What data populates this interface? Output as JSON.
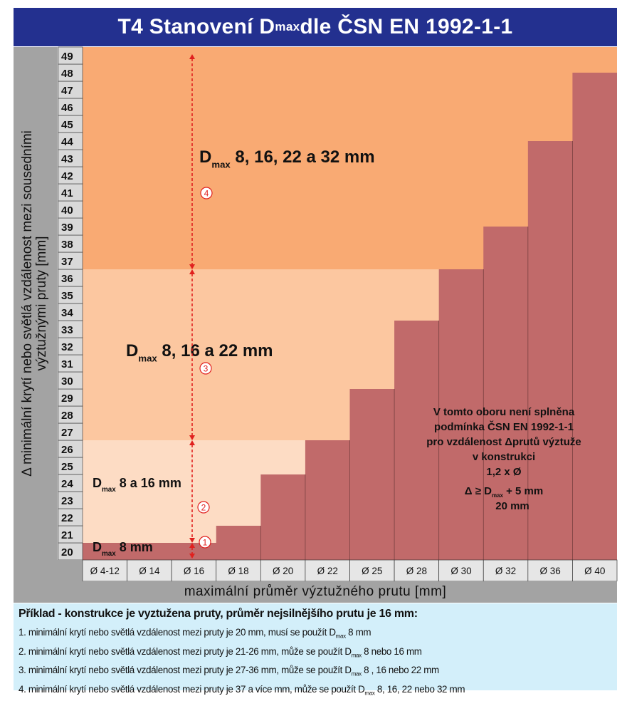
{
  "title": {
    "prefix": "T4  Stanovení D",
    "sub": "max",
    "suffix": " dle ČSN EN 1992-1-1"
  },
  "y_axis": {
    "label_line1": "Δ minimální krytí nebo světlá vzdálenost mezi sousedními",
    "label_line2": "výztužnými pruty  [mm]",
    "ticks": [
      20,
      21,
      22,
      23,
      24,
      25,
      26,
      27,
      28,
      29,
      30,
      31,
      32,
      33,
      34,
      35,
      36,
      37,
      38,
      39,
      40,
      41,
      42,
      43,
      44,
      45,
      46,
      47,
      48,
      49
    ]
  },
  "x_axis": {
    "label": "maximální průměr výztužného prutu [mm]",
    "categories": [
      "Ø 4-12",
      "Ø 14",
      "Ø 16",
      "Ø 18",
      "Ø 20",
      "Ø 22",
      "Ø 25",
      "Ø 28",
      "Ø 30",
      "Ø 32",
      "Ø 36",
      "Ø 40"
    ]
  },
  "colors": {
    "title_bg": "#23308f",
    "axis_bg": "#a3a3a3",
    "zone1": "#fffaf2",
    "zone2": "#fddcc4",
    "zone3": "#fcc7a0",
    "zone4": "#f9aa73",
    "invalid": "#c16a6a",
    "arrow": "#e0201e",
    "example_bg": "#d3effa"
  },
  "chart_data": {
    "type": "step-area",
    "categories": [
      "Ø 4-12",
      "Ø 14",
      "Ø 16",
      "Ø 18",
      "Ø 20",
      "Ø 22",
      "Ø 25",
      "Ø 28",
      "Ø 30",
      "Ø 32",
      "Ø 36",
      "Ø 40"
    ],
    "invalid_threshold_mm": [
      20,
      20,
      20,
      21,
      24,
      26,
      29,
      33,
      36,
      38.5,
      43.5,
      47.5
    ],
    "ylim": [
      19.5,
      49.5
    ],
    "zones": [
      {
        "id": 1,
        "label_main": "D",
        "label_sub": "max",
        "label_rest": " 8 mm",
        "range_mm": [
          20,
          20
        ]
      },
      {
        "id": 2,
        "label_main": "D",
        "label_sub": "max",
        "label_rest": " 8 a 16 mm",
        "range_mm": [
          21,
          26
        ]
      },
      {
        "id": 3,
        "label_main": "D",
        "label_sub": "max",
        "label_rest": " 8, 16 a 22 mm",
        "range_mm": [
          27,
          36
        ]
      },
      {
        "id": 4,
        "label_main": "D",
        "label_sub": "max",
        "label_rest": " 8, 16, 22 a 32 mm",
        "range_mm": [
          37,
          49
        ]
      }
    ],
    "markers": [
      "1",
      "2",
      "3",
      "4"
    ],
    "invalid_note": {
      "line1": "V tomto oboru není splněna",
      "line2": "podmínka ČSN EN 1992-1-1",
      "line3": "pro vzdálenost Δprutů výztuže",
      "line4": "v konstrukci",
      "line5": "1,2 x Ø",
      "line6_a": "Δ ≥  D",
      "line6_sub": "max",
      "line6_b": " + 5 mm",
      "line7": "20 mm"
    }
  },
  "example": {
    "title": "Příklad - konstrukce je vyztužena pruty, průměr nejsilnějšího prutu je 16 mm:",
    "lines": [
      {
        "a": "1. minimální krytí nebo světlá vzdálenost mezi pruty je 20 mm, musí se použít D",
        "sub": "max",
        "b": " 8 mm"
      },
      {
        "a": "2. minimální krytí nebo světlá vzdálenost mezi pruty je 21-26 mm, může se použít D",
        "sub": "max",
        "b": " 8 nebo 16 mm"
      },
      {
        "a": "3. minimální krytí nebo světlá vzdálenost mezi pruty je 27-36 mm, může se použít D",
        "sub": "max",
        "b": " 8 , 16 nebo 22 mm"
      },
      {
        "a": "4. minimální krytí nebo světlá vzdálenost mezi pruty je 37 a více mm, může se použít D",
        "sub": "max",
        "b": " 8, 16, 22 nebo 32 mm"
      }
    ]
  }
}
